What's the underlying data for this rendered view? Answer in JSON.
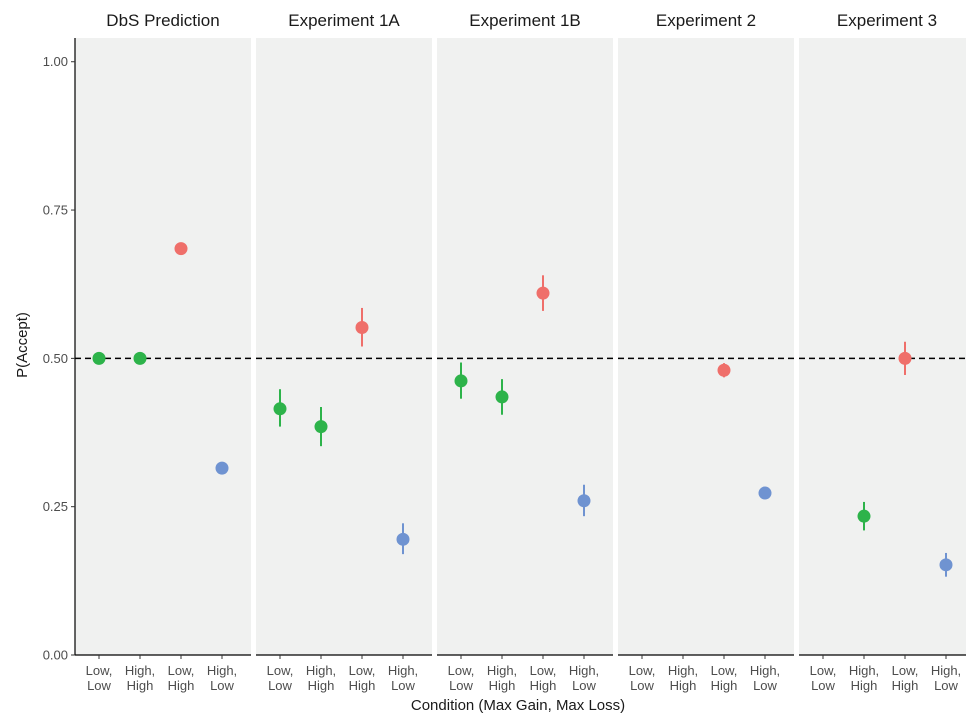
{
  "chart_data": {
    "type": "scatter",
    "xlabel": "Condition (Max Gain, Max Loss)",
    "ylabel": "P(Accept)",
    "ylim": [
      0,
      1.04
    ],
    "y_ticks": [
      "0.00",
      "0.25",
      "0.50",
      "0.75",
      "1.00"
    ],
    "y_tick_values": [
      0,
      0.25,
      0.5,
      0.75,
      1.0
    ],
    "categories": [
      {
        "line1": "Low,",
        "line2": "Low",
        "color": "#2db34a"
      },
      {
        "line1": "High,",
        "line2": "High",
        "color": "#2db34a"
      },
      {
        "line1": "Low,",
        "line2": "High",
        "color": "#ef6f6a"
      },
      {
        "line1": "High,",
        "line2": "Low",
        "color": "#6f93d1"
      }
    ],
    "reference_line": 0.5,
    "grid": false,
    "facets": [
      {
        "title": "DbS Prediction",
        "points": [
          {
            "cat": 0,
            "y": 0.5,
            "lo": 0.5,
            "hi": 0.5
          },
          {
            "cat": 1,
            "y": 0.5,
            "lo": 0.5,
            "hi": 0.5
          },
          {
            "cat": 2,
            "y": 0.685,
            "lo": 0.685,
            "hi": 0.685
          },
          {
            "cat": 3,
            "y": 0.315,
            "lo": 0.315,
            "hi": 0.315
          }
        ]
      },
      {
        "title": "Experiment 1A",
        "points": [
          {
            "cat": 0,
            "y": 0.415,
            "lo": 0.385,
            "hi": 0.448
          },
          {
            "cat": 1,
            "y": 0.385,
            "lo": 0.352,
            "hi": 0.418
          },
          {
            "cat": 2,
            "y": 0.552,
            "lo": 0.52,
            "hi": 0.585
          },
          {
            "cat": 3,
            "y": 0.195,
            "lo": 0.17,
            "hi": 0.222
          }
        ]
      },
      {
        "title": "Experiment 1B",
        "points": [
          {
            "cat": 0,
            "y": 0.462,
            "lo": 0.432,
            "hi": 0.493
          },
          {
            "cat": 1,
            "y": 0.435,
            "lo": 0.405,
            "hi": 0.465
          },
          {
            "cat": 2,
            "y": 0.61,
            "lo": 0.58,
            "hi": 0.64
          },
          {
            "cat": 3,
            "y": 0.26,
            "lo": 0.234,
            "hi": 0.287
          }
        ]
      },
      {
        "title": "Experiment 2",
        "points": [
          {
            "cat": 2,
            "y": 0.48,
            "lo": 0.468,
            "hi": 0.492
          },
          {
            "cat": 3,
            "y": 0.273,
            "lo": 0.263,
            "hi": 0.283
          }
        ]
      },
      {
        "title": "Experiment 3",
        "points": [
          {
            "cat": 1,
            "y": 0.234,
            "lo": 0.21,
            "hi": 0.258
          },
          {
            "cat": 2,
            "y": 0.5,
            "lo": 0.472,
            "hi": 0.528
          },
          {
            "cat": 3,
            "y": 0.152,
            "lo": 0.132,
            "hi": 0.172
          }
        ]
      }
    ]
  }
}
